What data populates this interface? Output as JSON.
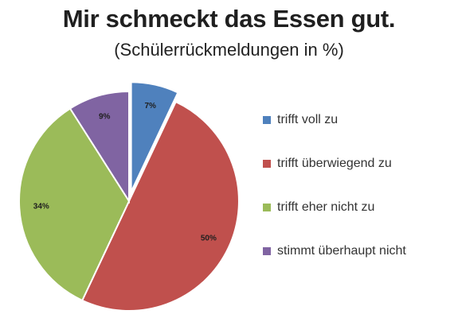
{
  "chart_data": {
    "type": "pie",
    "title": "Mir schmeckt das Essen gut.",
    "subtitle": "(Schülerrückmeldungen in %)",
    "categories": [
      "trifft voll zu",
      "trifft überwiegend zu",
      "trifft eher nicht zu",
      "stimmt überhaupt nicht"
    ],
    "values": [
      7,
      50,
      34,
      9
    ],
    "value_labels": [
      "7%",
      "50%",
      "34%",
      "9%"
    ],
    "colors": [
      "#4f81bd",
      "#c0504d",
      "#9bbb59",
      "#8064a2"
    ],
    "exploded": [
      "trifft voll zu"
    ],
    "legend_position": "right"
  }
}
